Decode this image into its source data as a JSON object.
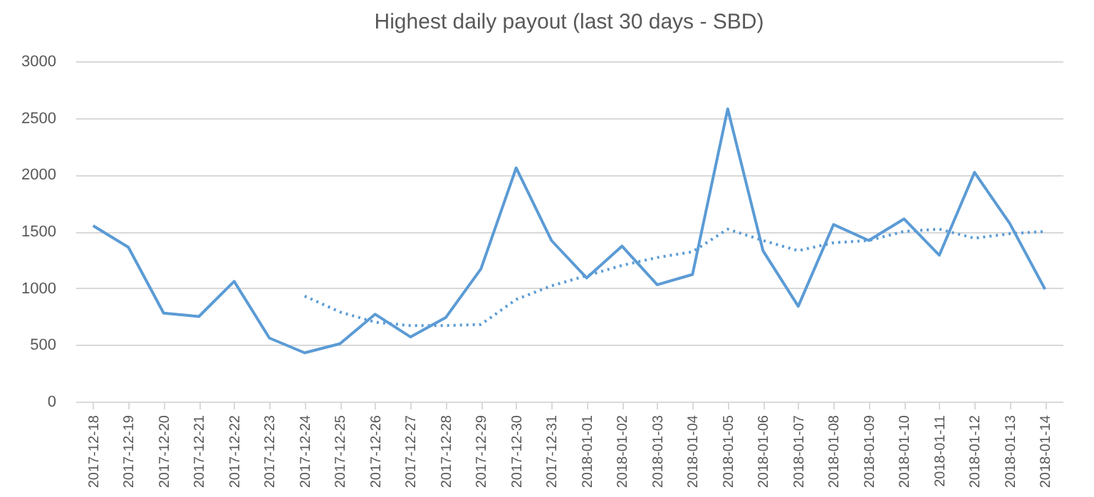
{
  "chart_data": {
    "type": "line",
    "title": "Highest daily payout (last 30 days - SBD)",
    "categories": [
      "2017-12-18",
      "2017-12-19",
      "2017-12-20",
      "2017-12-21",
      "2017-12-22",
      "2017-12-23",
      "2017-12-24",
      "2017-12-25",
      "2017-12-26",
      "2017-12-27",
      "2017-12-28",
      "2017-12-29",
      "2017-12-30",
      "2017-12-31",
      "2018-01-01",
      "2018-01-02",
      "2018-01-03",
      "2018-01-04",
      "2018-01-05",
      "2018-01-06",
      "2018-01-07",
      "2018-01-08",
      "2018-01-09",
      "2018-01-10",
      "2018-01-11",
      "2018-01-12",
      "2018-01-13",
      "2018-01-14"
    ],
    "series": [
      {
        "color": "#5b9bd5",
        "line_style": "solid",
        "values": [
          1550,
          1360,
          780,
          750,
          1060,
          560,
          430,
          510,
          770,
          570,
          740,
          1170,
          2060,
          1420,
          1090,
          1370,
          1030,
          1120,
          2580,
          1330,
          840,
          1560,
          1420,
          1610,
          1290,
          2020,
          1570,
          990
        ]
      },
      {
        "color": "#5b9bd5",
        "line_style": "dotted",
        "values": [
          null,
          null,
          null,
          null,
          null,
          null,
          930,
          790,
          700,
          670,
          670,
          680,
          900,
          1020,
          1110,
          1200,
          1270,
          1320,
          1520,
          1420,
          1330,
          1400,
          1420,
          1500,
          1520,
          1440,
          1480,
          1500
        ]
      }
    ],
    "ylim": [
      0,
      3000
    ],
    "yticks": [
      0,
      500,
      1000,
      1500,
      2000,
      2500,
      3000
    ],
    "grid": "y",
    "marker": "none"
  }
}
